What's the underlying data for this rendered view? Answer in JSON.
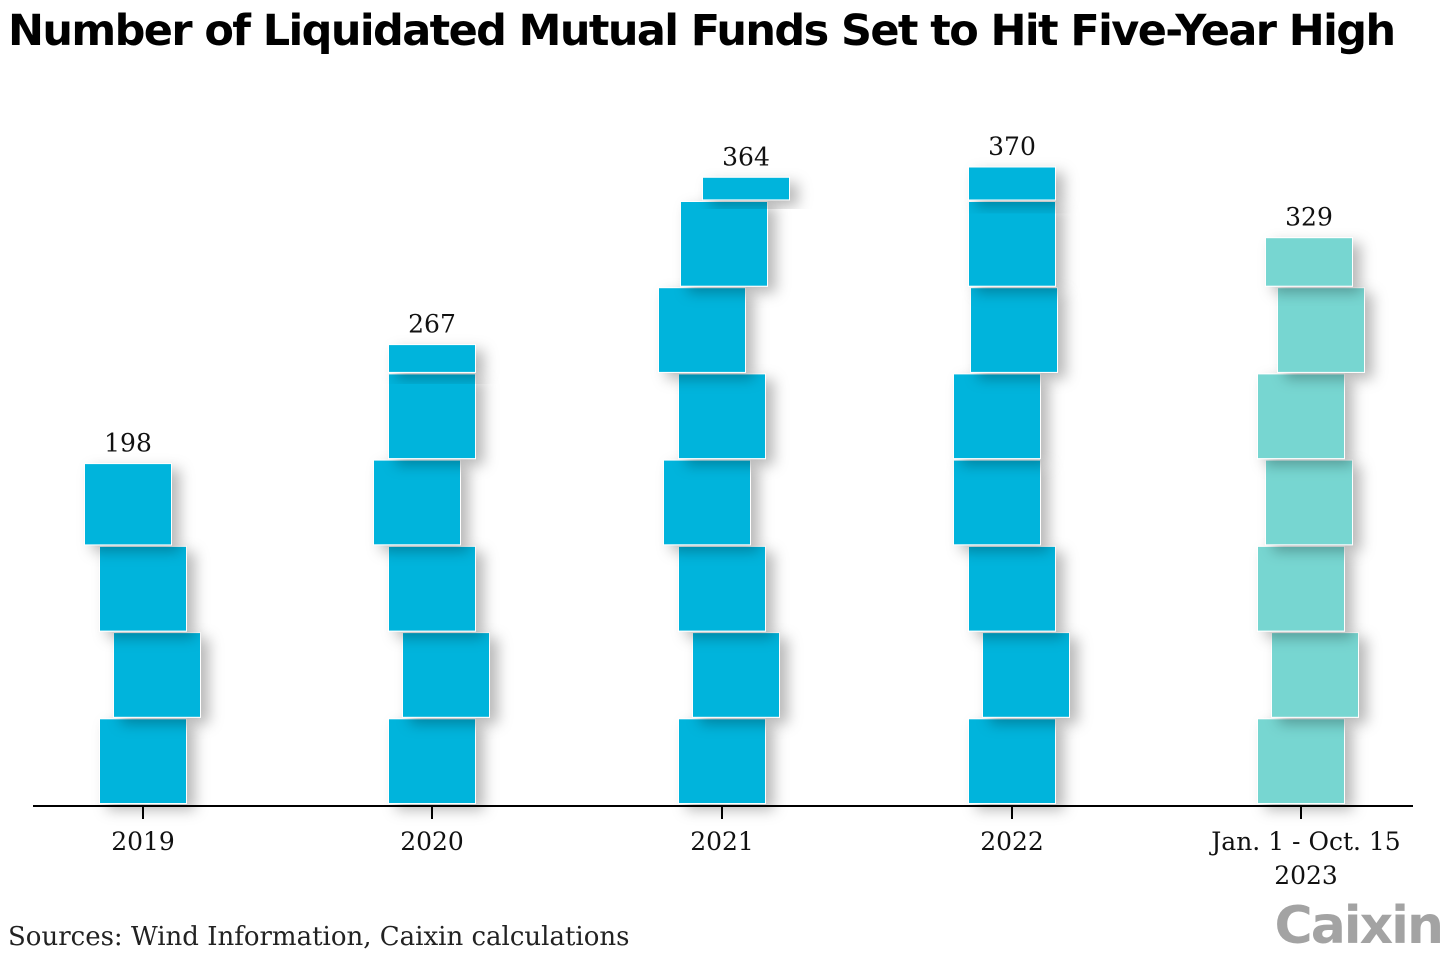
{
  "chart_data": {
    "type": "bar",
    "title": "Number of Liquidated Mutual Funds Set to Hit Five-Year High",
    "categories": [
      [
        "2019"
      ],
      [
        "2020"
      ],
      [
        "2021"
      ],
      [
        "2022"
      ],
      [
        "Jan. 1 - Oct. 15",
        "2023"
      ]
    ],
    "values": [
      198,
      267,
      364,
      370,
      329
    ],
    "ylim": [
      0,
      370
    ],
    "grid": false,
    "legend": "none",
    "colors": [
      "#00b4dc",
      "#00b4dc",
      "#00b4dc",
      "#00b4dc",
      "#77d6d1"
    ]
  },
  "footer": {
    "sources": "Sources: Wind Information, Caixin calculations",
    "brand": "Caixin"
  }
}
